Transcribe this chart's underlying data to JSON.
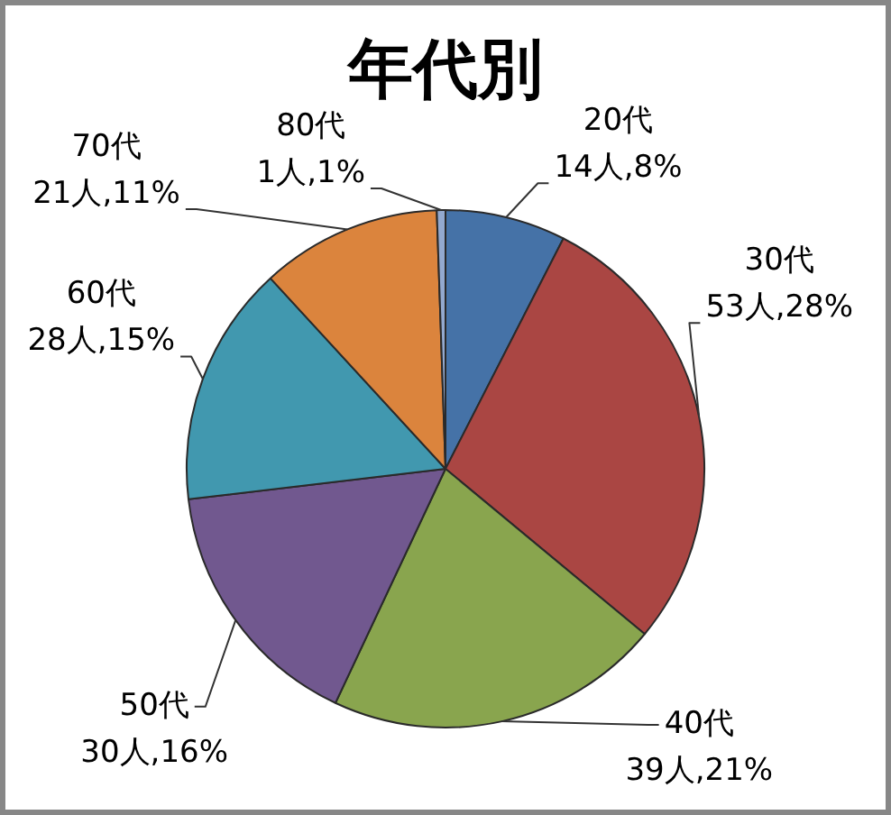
{
  "chart_data": {
    "type": "pie",
    "title": "年代別",
    "categories": [
      "20代",
      "30代",
      "40代",
      "50代",
      "60代",
      "70代",
      "80代"
    ],
    "values": [
      14,
      53,
      39,
      30,
      28,
      21,
      1
    ],
    "colors": [
      "#4572a7",
      "#aa4643",
      "#89a54e",
      "#71588f",
      "#4198af",
      "#db843d",
      "#93a9cf"
    ],
    "value_labels": [
      "14人,8%",
      "53人,28%",
      "39人,21%",
      "30人,16%",
      "28人,15%",
      "21人,11%",
      "1人,1%"
    ]
  }
}
